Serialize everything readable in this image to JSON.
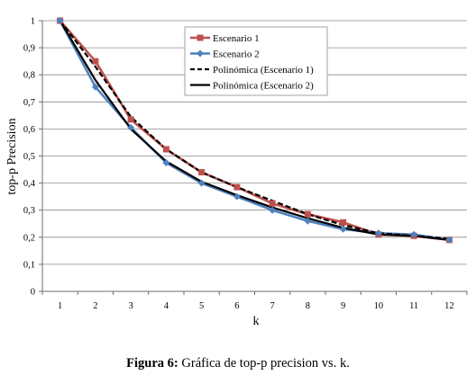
{
  "chart_data": {
    "type": "line",
    "title": "",
    "xlabel": "k",
    "ylabel": "top-p Precision",
    "xlim": [
      1,
      12
    ],
    "ylim": [
      0,
      1
    ],
    "x_ticks": [
      "1",
      "2",
      "3",
      "4",
      "5",
      "6",
      "7",
      "8",
      "9",
      "10",
      "11",
      "12"
    ],
    "y_ticks": [
      "0",
      "0,1",
      "0,2",
      "0,3",
      "0,4",
      "0,5",
      "0,6",
      "0,7",
      "0,8",
      "0,9",
      "1"
    ],
    "grid": true,
    "legend_position": "top-center",
    "x": [
      1,
      2,
      3,
      4,
      5,
      6,
      7,
      8,
      9,
      10,
      11,
      12
    ],
    "series": [
      {
        "name": "Escenario 1",
        "marker": "square",
        "color": "#c0504d",
        "values": [
          1.0,
          0.85,
          0.635,
          0.525,
          0.44,
          0.385,
          0.325,
          0.285,
          0.255,
          0.21,
          0.205,
          0.19
        ]
      },
      {
        "name": "Escenario 2",
        "marker": "diamond",
        "color": "#4f81bd",
        "values": [
          1.0,
          0.755,
          0.605,
          0.475,
          0.4,
          0.35,
          0.3,
          0.26,
          0.23,
          0.215,
          0.21,
          0.19
        ]
      },
      {
        "name": "Polinómica (Escenario 1)",
        "style": "dashed",
        "color": "#000000",
        "values": [
          1.0,
          0.83,
          0.645,
          0.525,
          0.44,
          0.385,
          0.335,
          0.285,
          0.245,
          0.215,
          0.205,
          0.195
        ]
      },
      {
        "name": "Polinómica (Escenario 2)",
        "style": "solid",
        "color": "#000000",
        "values": [
          1.0,
          0.78,
          0.6,
          0.48,
          0.405,
          0.355,
          0.31,
          0.27,
          0.235,
          0.21,
          0.205,
          0.19
        ]
      }
    ]
  },
  "caption": {
    "label": "Figura 6:",
    "text": " Gráfica de top-p precision vs. k."
  }
}
